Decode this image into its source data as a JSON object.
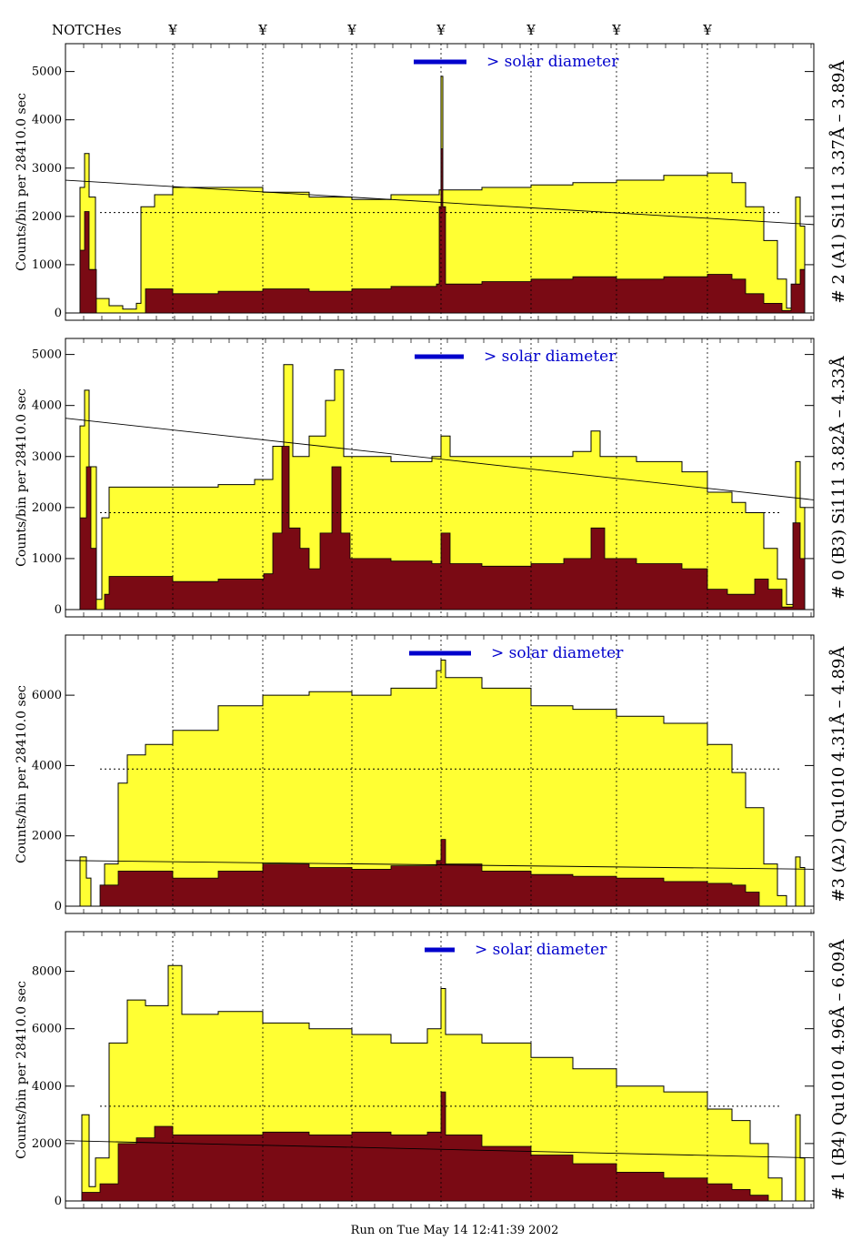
{
  "header": {
    "notch_title": "NOTCHes",
    "notch_symbol": "¥",
    "notch_positions": [
      190,
      289,
      387,
      485,
      584,
      678,
      778
    ]
  },
  "footer": {
    "run_text": "Run on Tue May 14 12:41:39 2002"
  },
  "colors": {
    "total": "#ffff33",
    "filtered": "#7a0a14",
    "solar_bar": "#0000cc",
    "axis": "#000000"
  },
  "chart_data": [
    {
      "type": "area",
      "right_label": "# 2 (A1) Si111  3.37Å – 3.89Å",
      "ylabel": "Counts/bin per  28410.0 sec",
      "yticks": [
        0,
        1000,
        2000,
        3000,
        4000,
        5000
      ],
      "ylim": [
        0,
        5200
      ],
      "solar_label": "> solar diameter",
      "solar_bar": [
        455,
        513
      ],
      "smooth_level": 2080,
      "decline": [
        2750,
        1830
      ],
      "total": [
        [
          80,
          0
        ],
        [
          88,
          2600
        ],
        [
          93,
          3300
        ],
        [
          98,
          2400
        ],
        [
          105,
          300
        ],
        [
          120,
          150
        ],
        [
          135,
          80
        ],
        [
          150,
          200
        ],
        [
          155,
          2200
        ],
        [
          170,
          2450
        ],
        [
          190,
          2600
        ],
        [
          240,
          2600
        ],
        [
          289,
          2500
        ],
        [
          340,
          2400
        ],
        [
          387,
          2350
        ],
        [
          430,
          2450
        ],
        [
          483,
          2550
        ],
        [
          485,
          4900
        ],
        [
          487,
          2550
        ],
        [
          530,
          2600
        ],
        [
          584,
          2650
        ],
        [
          630,
          2700
        ],
        [
          678,
          2750
        ],
        [
          730,
          2850
        ],
        [
          778,
          2900
        ],
        [
          805,
          2700
        ],
        [
          820,
          2200
        ],
        [
          840,
          1500
        ],
        [
          855,
          700
        ],
        [
          865,
          100
        ],
        [
          875,
          2400
        ],
        [
          880,
          1800
        ],
        [
          885,
          0
        ]
      ],
      "filtered": [
        [
          80,
          0
        ],
        [
          88,
          1300
        ],
        [
          93,
          2100
        ],
        [
          98,
          900
        ],
        [
          106,
          0
        ],
        [
          150,
          0
        ],
        [
          160,
          500
        ],
        [
          190,
          400
        ],
        [
          240,
          450
        ],
        [
          289,
          500
        ],
        [
          340,
          450
        ],
        [
          387,
          500
        ],
        [
          430,
          550
        ],
        [
          480,
          600
        ],
        [
          483,
          2200
        ],
        [
          485,
          3400
        ],
        [
          487,
          2200
        ],
        [
          490,
          600
        ],
        [
          530,
          650
        ],
        [
          584,
          700
        ],
        [
          630,
          750
        ],
        [
          678,
          700
        ],
        [
          730,
          750
        ],
        [
          778,
          800
        ],
        [
          805,
          700
        ],
        [
          820,
          400
        ],
        [
          840,
          200
        ],
        [
          860,
          50
        ],
        [
          870,
          600
        ],
        [
          880,
          900
        ],
        [
          885,
          0
        ]
      ]
    },
    {
      "type": "area",
      "right_label": "# 0 (B3) Si111  3.82Å – 4.33Å",
      "ylabel": "Counts/bin per  28410.0 sec",
      "yticks": [
        0,
        1000,
        2000,
        3000,
        4000,
        5000
      ],
      "ylim": [
        0,
        5100
      ],
      "solar_label": "> solar diameter",
      "solar_bar": [
        456,
        510
      ],
      "smooth_level": 1900,
      "decline": [
        3750,
        2150
      ],
      "total": [
        [
          80,
          0
        ],
        [
          88,
          3600
        ],
        [
          93,
          4300
        ],
        [
          98,
          2800
        ],
        [
          106,
          200
        ],
        [
          112,
          1800
        ],
        [
          120,
          2400
        ],
        [
          190,
          2400
        ],
        [
          240,
          2450
        ],
        [
          280,
          2550
        ],
        [
          300,
          3200
        ],
        [
          312,
          4800
        ],
        [
          322,
          3000
        ],
        [
          340,
          3400
        ],
        [
          358,
          4100
        ],
        [
          368,
          4700
        ],
        [
          378,
          3000
        ],
        [
          430,
          2900
        ],
        [
          475,
          3000
        ],
        [
          485,
          3400
        ],
        [
          495,
          3000
        ],
        [
          530,
          3000
        ],
        [
          584,
          3000
        ],
        [
          630,
          3100
        ],
        [
          650,
          3500
        ],
        [
          660,
          3000
        ],
        [
          700,
          2900
        ],
        [
          750,
          2700
        ],
        [
          778,
          2300
        ],
        [
          805,
          2100
        ],
        [
          820,
          1900
        ],
        [
          840,
          1200
        ],
        [
          855,
          600
        ],
        [
          865,
          100
        ],
        [
          875,
          2900
        ],
        [
          880,
          2000
        ],
        [
          885,
          0
        ]
      ],
      "filtered": [
        [
          80,
          0
        ],
        [
          88,
          1800
        ],
        [
          95,
          2800
        ],
        [
          100,
          1200
        ],
        [
          106,
          0
        ],
        [
          115,
          300
        ],
        [
          120,
          650
        ],
        [
          190,
          550
        ],
        [
          240,
          600
        ],
        [
          290,
          700
        ],
        [
          300,
          1500
        ],
        [
          310,
          3200
        ],
        [
          318,
          1600
        ],
        [
          330,
          1200
        ],
        [
          340,
          800
        ],
        [
          352,
          1500
        ],
        [
          365,
          2800
        ],
        [
          375,
          1500
        ],
        [
          385,
          1000
        ],
        [
          430,
          950
        ],
        [
          475,
          900
        ],
        [
          485,
          1500
        ],
        [
          495,
          900
        ],
        [
          530,
          850
        ],
        [
          584,
          900
        ],
        [
          620,
          1000
        ],
        [
          650,
          1600
        ],
        [
          665,
          1000
        ],
        [
          700,
          900
        ],
        [
          750,
          800
        ],
        [
          778,
          400
        ],
        [
          800,
          300
        ],
        [
          830,
          600
        ],
        [
          845,
          400
        ],
        [
          860,
          50
        ],
        [
          872,
          1700
        ],
        [
          880,
          1000
        ],
        [
          885,
          0
        ]
      ]
    },
    {
      "type": "area",
      "right_label": "#3 (A2) Qu1010  4.31Å – 4.89Å",
      "ylabel": "Counts/bin per  28410.0 sec",
      "yticks": [
        0,
        2000,
        4000,
        6000
      ],
      "ylim": [
        0,
        7400
      ],
      "solar_label": "> solar diameter",
      "solar_bar": [
        450,
        518
      ],
      "smooth_level": 3900,
      "decline": [
        1300,
        1050
      ],
      "total": [
        [
          80,
          0
        ],
        [
          88,
          1400
        ],
        [
          95,
          800
        ],
        [
          100,
          0
        ],
        [
          115,
          1200
        ],
        [
          130,
          3500
        ],
        [
          140,
          4300
        ],
        [
          160,
          4600
        ],
        [
          190,
          5000
        ],
        [
          240,
          5700
        ],
        [
          289,
          6000
        ],
        [
          340,
          6100
        ],
        [
          387,
          6000
        ],
        [
          430,
          6200
        ],
        [
          480,
          6700
        ],
        [
          485,
          7000
        ],
        [
          490,
          6500
        ],
        [
          530,
          6200
        ],
        [
          584,
          5700
        ],
        [
          630,
          5600
        ],
        [
          678,
          5400
        ],
        [
          730,
          5200
        ],
        [
          778,
          4600
        ],
        [
          805,
          3800
        ],
        [
          820,
          2800
        ],
        [
          840,
          1200
        ],
        [
          855,
          300
        ],
        [
          865,
          0
        ],
        [
          875,
          1400
        ],
        [
          880,
          1100
        ],
        [
          885,
          0
        ]
      ],
      "filtered": [
        [
          80,
          0
        ],
        [
          100,
          0
        ],
        [
          110,
          600
        ],
        [
          130,
          1000
        ],
        [
          190,
          800
        ],
        [
          240,
          1000
        ],
        [
          289,
          1200
        ],
        [
          340,
          1100
        ],
        [
          387,
          1050
        ],
        [
          430,
          1150
        ],
        [
          480,
          1300
        ],
        [
          485,
          1900
        ],
        [
          490,
          1200
        ],
        [
          530,
          1000
        ],
        [
          584,
          900
        ],
        [
          630,
          850
        ],
        [
          678,
          800
        ],
        [
          730,
          700
        ],
        [
          778,
          650
        ],
        [
          805,
          600
        ],
        [
          820,
          400
        ],
        [
          835,
          0
        ],
        [
          885,
          0
        ]
      ]
    },
    {
      "type": "area",
      "right_label": "# 1 (B4) Qu1010 4.96Å – 6.09Å",
      "ylabel": "Counts/bin per  28410.0 sec",
      "yticks": [
        0,
        2000,
        4000,
        6000,
        8000
      ],
      "ylim": [
        0,
        9000
      ],
      "solar_label": "> solar diameter",
      "solar_bar": [
        467,
        500
      ],
      "smooth_level": 3300,
      "decline": [
        2100,
        1500
      ],
      "total": [
        [
          80,
          0
        ],
        [
          90,
          3000
        ],
        [
          98,
          500
        ],
        [
          105,
          1500
        ],
        [
          120,
          5500
        ],
        [
          140,
          7000
        ],
        [
          160,
          6800
        ],
        [
          185,
          8200
        ],
        [
          200,
          6500
        ],
        [
          240,
          6600
        ],
        [
          289,
          6200
        ],
        [
          340,
          6000
        ],
        [
          387,
          5800
        ],
        [
          430,
          5500
        ],
        [
          470,
          6000
        ],
        [
          485,
          7400
        ],
        [
          490,
          5800
        ],
        [
          530,
          5500
        ],
        [
          584,
          5000
        ],
        [
          630,
          4600
        ],
        [
          678,
          4000
        ],
        [
          730,
          3800
        ],
        [
          778,
          3200
        ],
        [
          805,
          2800
        ],
        [
          825,
          2000
        ],
        [
          845,
          800
        ],
        [
          860,
          0
        ],
        [
          875,
          3000
        ],
        [
          880,
          1500
        ],
        [
          885,
          0
        ]
      ],
      "filtered": [
        [
          80,
          0
        ],
        [
          90,
          300
        ],
        [
          110,
          600
        ],
        [
          130,
          2000
        ],
        [
          150,
          2200
        ],
        [
          170,
          2600
        ],
        [
          190,
          2300
        ],
        [
          240,
          2300
        ],
        [
          289,
          2400
        ],
        [
          340,
          2300
        ],
        [
          387,
          2400
        ],
        [
          430,
          2300
        ],
        [
          470,
          2400
        ],
        [
          485,
          3800
        ],
        [
          490,
          2300
        ],
        [
          530,
          1900
        ],
        [
          584,
          1600
        ],
        [
          630,
          1300
        ],
        [
          678,
          1000
        ],
        [
          730,
          800
        ],
        [
          778,
          600
        ],
        [
          805,
          400
        ],
        [
          825,
          200
        ],
        [
          845,
          0
        ],
        [
          885,
          0
        ]
      ]
    }
  ]
}
